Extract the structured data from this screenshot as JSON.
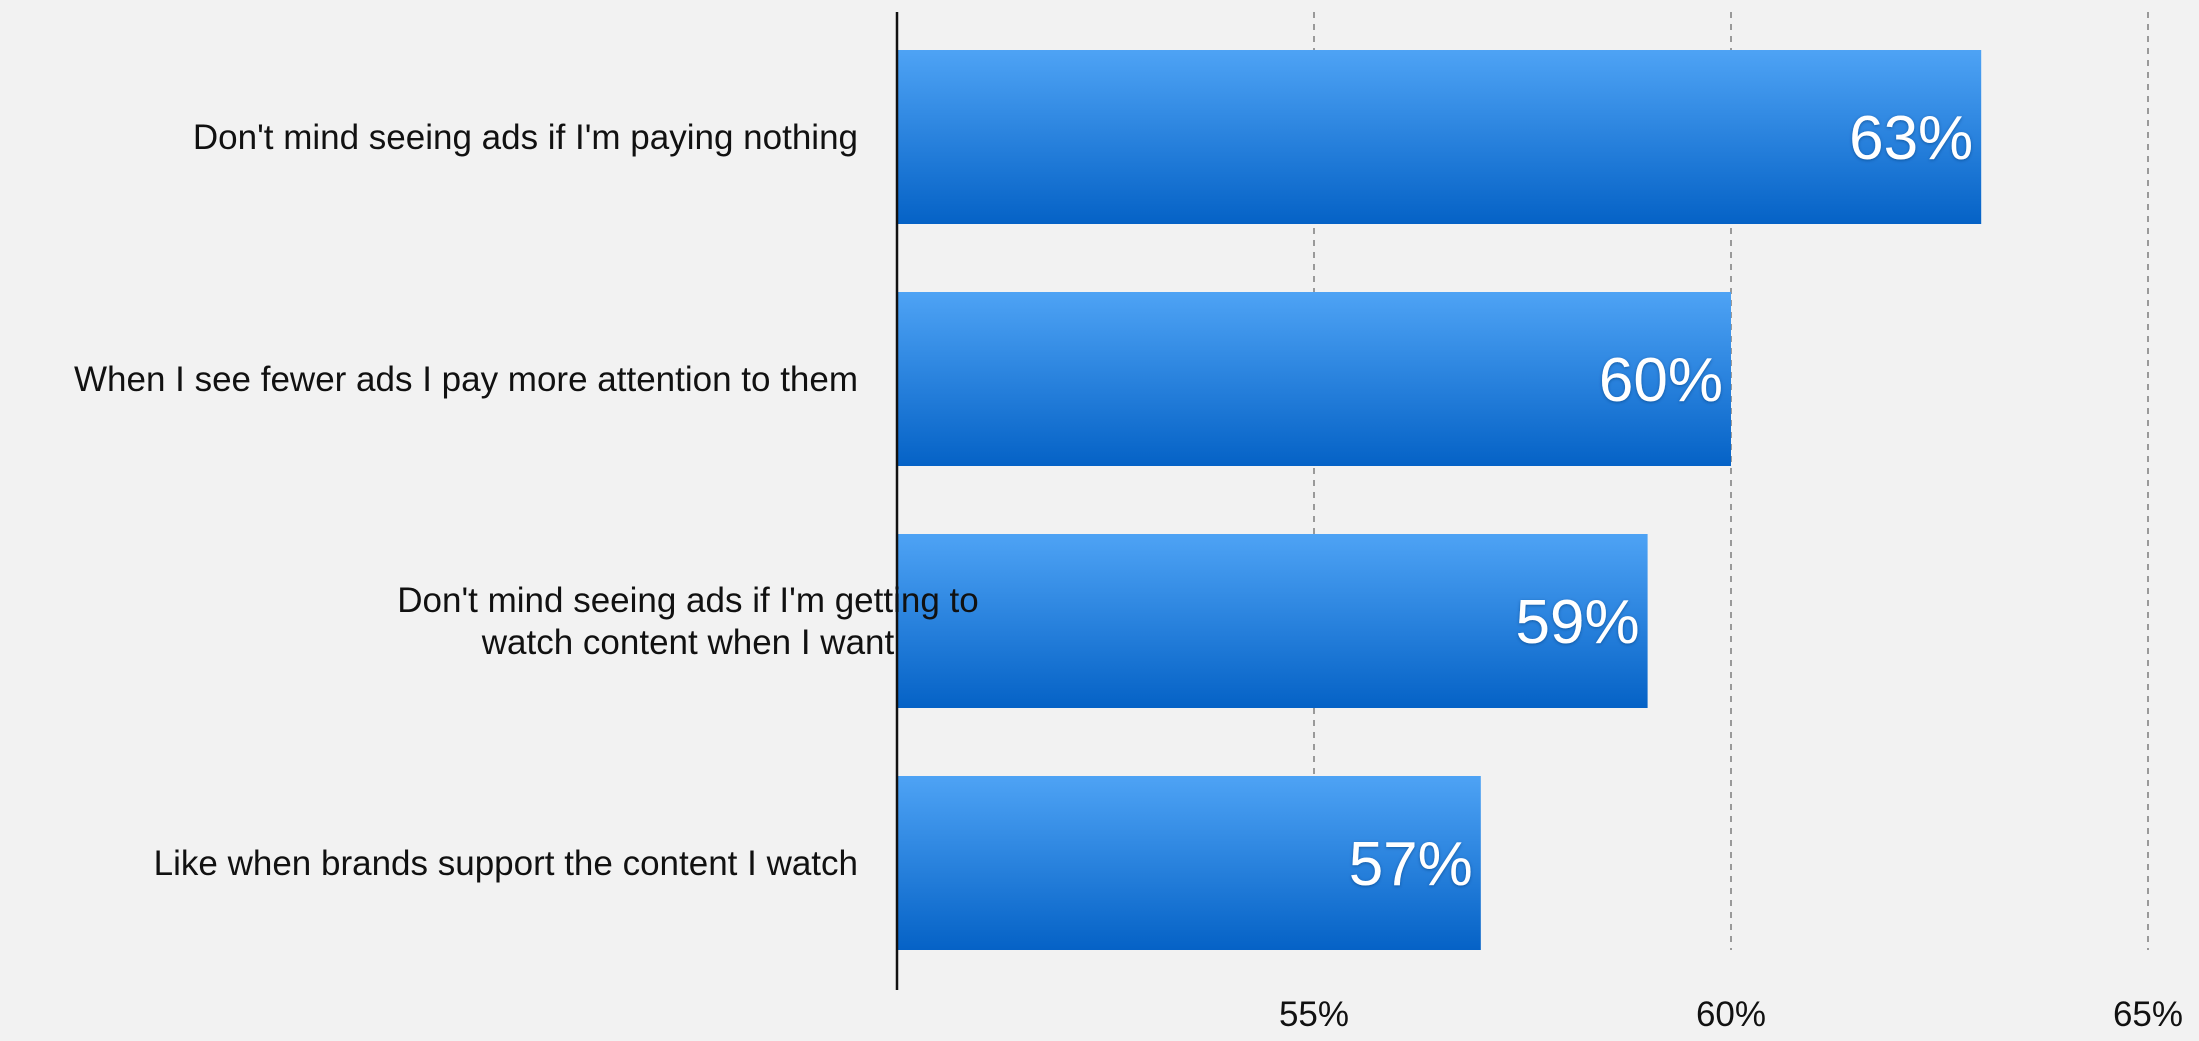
{
  "chart_data": {
    "type": "bar",
    "orientation": "horizontal",
    "categories": [
      [
        "Don't mind seeing ads if I'm paying nothing"
      ],
      [
        "When I see fewer ads I pay more attention to them"
      ],
      [
        "Don't mind seeing ads if I'm getting to",
        "watch content when I want"
      ],
      [
        "Like when brands support the content I watch"
      ]
    ],
    "values": [
      63,
      60,
      59,
      57
    ],
    "data_labels": [
      "63%",
      "60%",
      "59%",
      "57%"
    ],
    "xlim": [
      50,
      65
    ],
    "xticks": [
      55,
      60,
      65
    ],
    "xtick_labels": [
      "55%",
      "60%",
      "65%"
    ],
    "grid": "vertical dashed",
    "legend": "none",
    "title": "",
    "xlabel": "",
    "ylabel": "",
    "colors": {
      "bar_top": "#4ea3f5",
      "bar_bottom": "#0562c6",
      "grid": "#9a9a9a",
      "axis": "#111111",
      "background": "#f2f2f2"
    }
  }
}
